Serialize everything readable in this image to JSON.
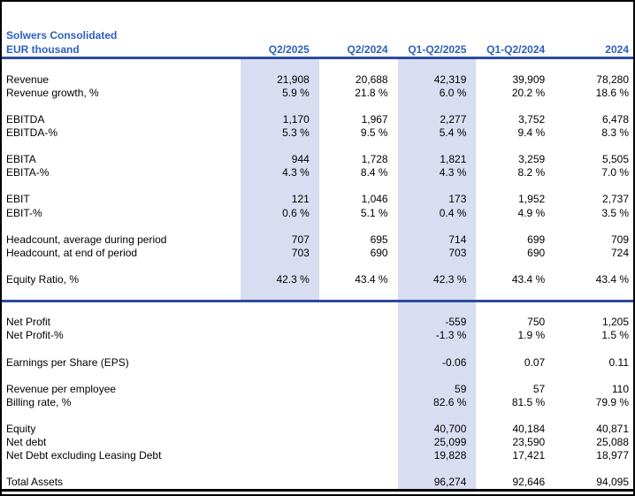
{
  "title": {
    "line1": "Solwers Consolidated",
    "line2": "EUR thousand"
  },
  "columns": [
    "Q2/2025",
    "Q2/2024",
    "Q1-Q2/2025",
    "Q1-Q2/2024",
    "2024"
  ],
  "colors": {
    "band": "#D9DDF1",
    "header_blue": "#2D5FBE",
    "rule_blue": "#2C4C9C",
    "text": "#000000"
  },
  "sections": [
    {
      "name": "income-and-kpis",
      "shaded_columns": [
        0,
        2
      ],
      "rows": [
        {
          "label": "",
          "values": [
            "",
            "",
            "",
            "",
            ""
          ]
        },
        {
          "label": "Revenue",
          "values": [
            "21,908",
            "20,688",
            "42,319",
            "39,909",
            "78,280"
          ]
        },
        {
          "label": "Revenue growth, %",
          "values": [
            "5.9 %",
            "21.8 %",
            "6.0 %",
            "20.2 %",
            "18.6 %"
          ]
        },
        {
          "label": "",
          "values": [
            "",
            "",
            "",
            "",
            ""
          ]
        },
        {
          "label": "EBITDA",
          "values": [
            "1,170",
            "1,967",
            "2,277",
            "3,752",
            "6,478"
          ]
        },
        {
          "label": "EBITDA-%",
          "values": [
            "5.3 %",
            "9.5 %",
            "5.4 %",
            "9.4 %",
            "8.3 %"
          ]
        },
        {
          "label": "",
          "values": [
            "",
            "",
            "",
            "",
            ""
          ]
        },
        {
          "label": "EBITA",
          "values": [
            "944",
            "1,728",
            "1,821",
            "3,259",
            "5,505"
          ]
        },
        {
          "label": "EBITA-%",
          "values": [
            "4.3 %",
            "8.4 %",
            "4.3 %",
            "8.2 %",
            "7.0 %"
          ]
        },
        {
          "label": "",
          "values": [
            "",
            "",
            "",
            "",
            ""
          ]
        },
        {
          "label": "EBIT",
          "values": [
            "121",
            "1,046",
            "173",
            "1,952",
            "2,737"
          ]
        },
        {
          "label": "EBIT-%",
          "values": [
            "0.6 %",
            "5.1 %",
            "0.4 %",
            "4.9 %",
            "3.5 %"
          ]
        },
        {
          "label": "",
          "values": [
            "",
            "",
            "",
            "",
            ""
          ]
        },
        {
          "label": "Headcount, average during period",
          "values": [
            "707",
            "695",
            "714",
            "699",
            "709"
          ]
        },
        {
          "label": "Headcount, at end of period",
          "values": [
            "703",
            "690",
            "703",
            "690",
            "724"
          ]
        },
        {
          "label": "",
          "values": [
            "",
            "",
            "",
            "",
            ""
          ]
        },
        {
          "label": "Equity Ratio, %",
          "values": [
            "42.3 %",
            "43.4 %",
            "42.3 %",
            "43.4 %",
            "43.4 %"
          ]
        },
        {
          "label": "",
          "values": [
            "",
            "",
            "",
            "",
            ""
          ]
        }
      ]
    },
    {
      "name": "profit-and-balance",
      "shaded_columns": [
        2
      ],
      "rows": [
        {
          "label": "",
          "values": [
            "",
            "",
            "",
            "",
            ""
          ]
        },
        {
          "label": "Net Profit",
          "values": [
            "",
            "",
            "-559",
            "750",
            "1,205"
          ]
        },
        {
          "label": "Net Profit-%",
          "values": [
            "",
            "",
            "-1.3 %",
            "1.9 %",
            "1.5 %"
          ]
        },
        {
          "label": "",
          "values": [
            "",
            "",
            "",
            "",
            ""
          ]
        },
        {
          "label": "Earnings per Share (EPS)",
          "values": [
            "",
            "",
            "-0.06",
            "0.07",
            "0.11"
          ]
        },
        {
          "label": "",
          "values": [
            "",
            "",
            "",
            "",
            ""
          ]
        },
        {
          "label": "Revenue per employee",
          "values": [
            "",
            "",
            "59",
            "57",
            "110"
          ]
        },
        {
          "label": "Billing rate, %",
          "values": [
            "",
            "",
            "82.6 %",
            "81.5 %",
            "79.9 %"
          ]
        },
        {
          "label": "",
          "values": [
            "",
            "",
            "",
            "",
            ""
          ]
        },
        {
          "label": "Equity",
          "values": [
            "",
            "",
            "40,700",
            "40,184",
            "40,871"
          ]
        },
        {
          "label": "Net debt",
          "values": [
            "",
            "",
            "25,099",
            "23,590",
            "25,088"
          ]
        },
        {
          "label": "Net Debt excluding Leasing Debt",
          "values": [
            "",
            "",
            "19,828",
            "17,421",
            "18,977"
          ]
        },
        {
          "label": "",
          "values": [
            "",
            "",
            "",
            "",
            ""
          ]
        },
        {
          "label": "Total Assets",
          "values": [
            "",
            "",
            "96,274",
            "92,646",
            "94,095"
          ]
        }
      ]
    }
  ]
}
